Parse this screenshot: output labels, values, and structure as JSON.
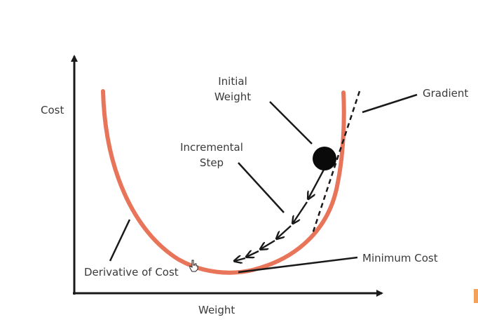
{
  "axes": {
    "y_label": "Cost",
    "x_label": "Weight"
  },
  "labels": {
    "initial_weight": [
      "Initial",
      "Weight"
    ],
    "incremental_step": [
      "Incremental",
      "Step"
    ],
    "gradient": "Gradient",
    "minimum_cost": "Minimum Cost",
    "derivative_of_cost": "Derivative of Cost"
  },
  "colors": {
    "curve": "#e8755a",
    "axis": "#1a1a1a",
    "ball": "#0a0a0a",
    "text": "#3a3a3a",
    "edge_accent": "#f2a25a"
  },
  "icons": {
    "cursor": "hand-pointer-icon"
  }
}
